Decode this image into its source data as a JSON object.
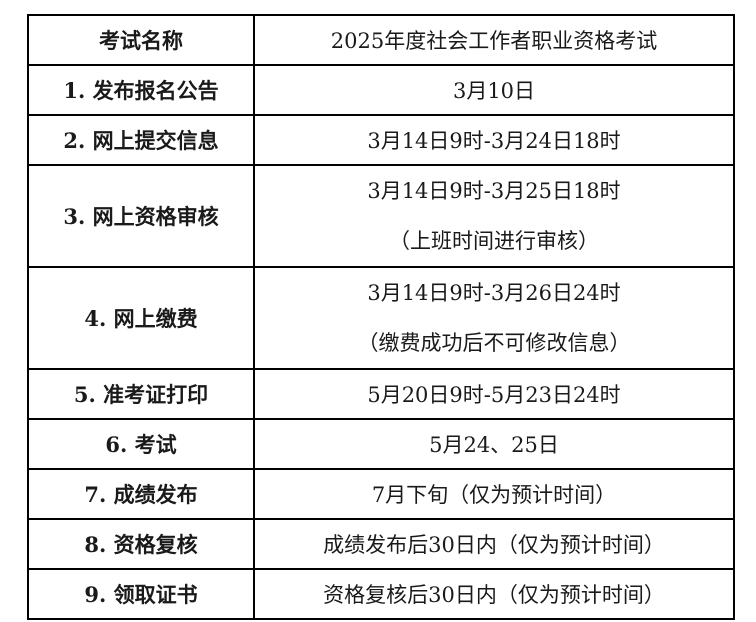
{
  "header": {
    "label": "考试名称",
    "value": "2025年度社会工作者职业资格考试"
  },
  "rows": [
    {
      "label": "1. 发布报名公告",
      "lines": [
        "3月10日"
      ]
    },
    {
      "label": "2. 网上提交信息",
      "lines": [
        "3月14日9时-3月24日18时"
      ]
    },
    {
      "label": "3. 网上资格审核",
      "lines": [
        "3月14日9时-3月25日18时",
        "（上班时间进行审核）"
      ]
    },
    {
      "label": "4. 网上缴费",
      "lines": [
        "3月14日9时-3月26日24时",
        "（缴费成功后不可修改信息）"
      ]
    },
    {
      "label": "5. 准考证打印",
      "lines": [
        "5月20日9时-5月23日24时"
      ]
    },
    {
      "label": "6. 考试",
      "lines": [
        "5月24、25日"
      ]
    },
    {
      "label": "7. 成绩发布",
      "lines": [
        "7月下旬（仅为预计时间）"
      ]
    },
    {
      "label": "8. 资格复核",
      "lines": [
        "成绩发布后30日内（仅为预计时间）"
      ]
    },
    {
      "label": "9. 领取证书",
      "lines": [
        "资格复核后30日内（仅为预计时间）"
      ]
    }
  ]
}
